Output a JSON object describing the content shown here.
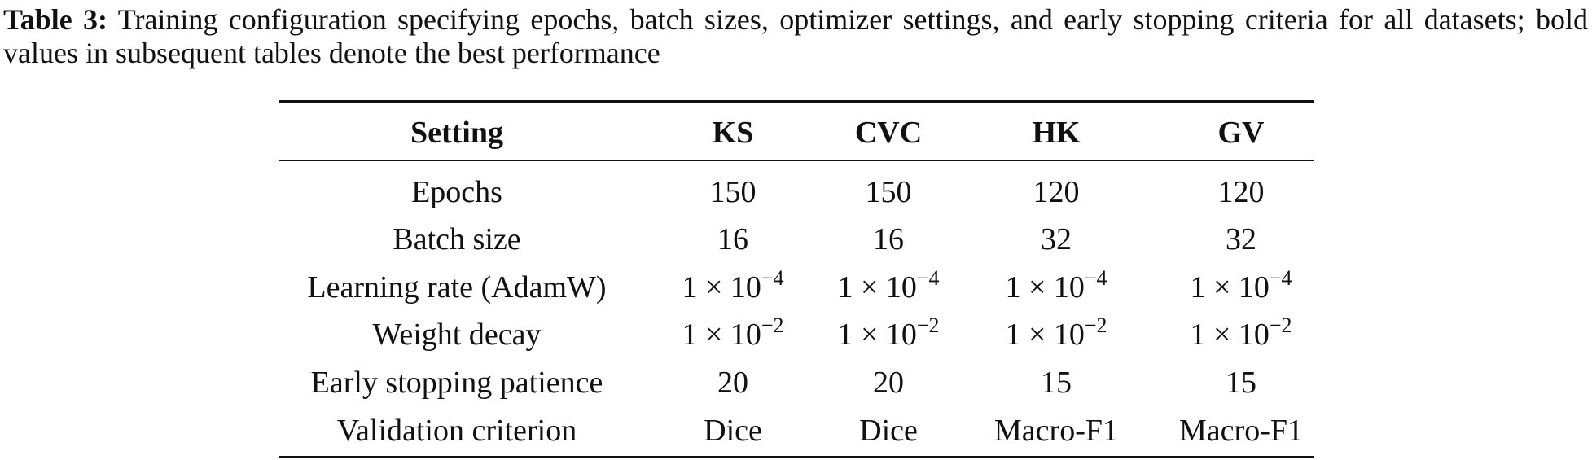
{
  "caption": {
    "label": "Table 3:",
    "text": "Training configuration specifying epochs, batch sizes, optimizer settings, and early stopping criteria for all datasets; bold values in subsequent tables denote the best performance"
  },
  "table": {
    "header": [
      "Setting",
      "KS",
      "CVC",
      "HK",
      "GV"
    ],
    "rows": [
      [
        "Epochs",
        "150",
        "150",
        "120",
        "120"
      ],
      [
        "Batch size",
        "16",
        "16",
        "32",
        "32"
      ],
      [
        "Learning rate (AdamW)",
        {
          "base": "1 × 10",
          "exp": "−4"
        },
        {
          "base": "1 × 10",
          "exp": "−4"
        },
        {
          "base": "1 × 10",
          "exp": "−4"
        },
        {
          "base": "1 × 10",
          "exp": "−4"
        }
      ],
      [
        "Weight decay",
        {
          "base": "1 × 10",
          "exp": "−2"
        },
        {
          "base": "1 × 10",
          "exp": "−2"
        },
        {
          "base": "1 × 10",
          "exp": "−2"
        },
        {
          "base": "1 × 10",
          "exp": "−2"
        }
      ],
      [
        "Early stopping patience",
        "20",
        "20",
        "15",
        "15"
      ],
      [
        "Validation criterion",
        "Dice",
        "Dice",
        "Macro-F1",
        "Macro-F1"
      ]
    ]
  }
}
